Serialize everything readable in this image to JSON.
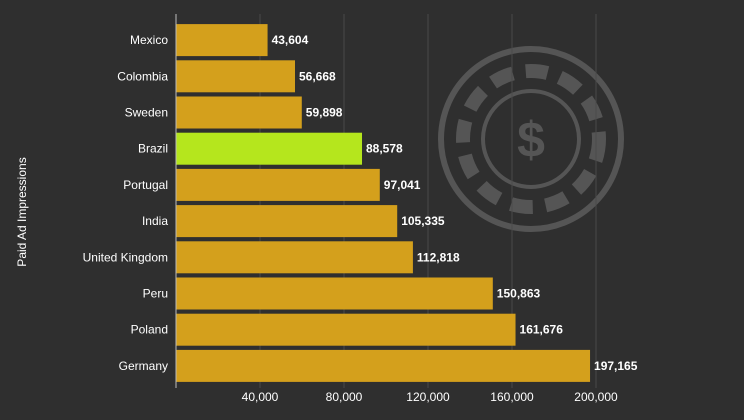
{
  "chart_data": {
    "type": "bar",
    "orientation": "horizontal",
    "title": "",
    "xlabel": "",
    "ylabel": "Paid Ad Impressions",
    "categories": [
      "Mexico",
      "Colombia",
      "Sweden",
      "Brazil",
      "Portugal",
      "India",
      "United Kingdom",
      "Peru",
      "Poland",
      "Germany"
    ],
    "values": [
      43604,
      56668,
      59898,
      88578,
      97041,
      105335,
      112818,
      150863,
      161676,
      197165
    ],
    "value_labels": [
      "43,604",
      "56,668",
      "59,898",
      "88,578",
      "97,041",
      "105,335",
      "112,818",
      "150,863",
      "161,676",
      "197,165"
    ],
    "highlight_category": "Brazil",
    "xlim": [
      0,
      200000
    ],
    "xticks": [
      40000,
      80000,
      120000,
      160000,
      200000
    ],
    "xtick_labels": [
      "40,000",
      "80,000",
      "120,000",
      "160,000",
      "200,000"
    ],
    "grid": true,
    "colors": {
      "bar": "#d4a01c",
      "highlight": "#b5e61d",
      "background": "#2f2f2f",
      "grid": "#4a4a4a",
      "text": "#ffffff",
      "watermark": "#555555"
    }
  }
}
